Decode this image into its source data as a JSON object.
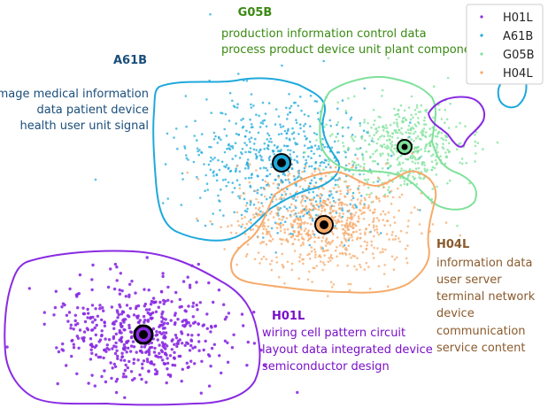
{
  "chart_data": {
    "type": "scatter",
    "legend": {
      "placement": "top-right",
      "entries": [
        "H01L",
        "A61B",
        "G05B",
        "H04L"
      ]
    },
    "series": [
      {
        "name": "A61B",
        "color": "#1fa9dc",
        "centroid": [
          318,
          184
        ],
        "terms": [
          "image medical information",
          "data patient device",
          "health user unit signal"
        ],
        "spread": [
          52,
          40
        ],
        "count": 620
      },
      {
        "name": "G05B",
        "color": "#7ee19a",
        "centroid": [
          457,
          166
        ],
        "terms": [
          "production information control data",
          "process product device unit plant component"
        ],
        "spread": [
          36,
          26
        ],
        "count": 480
      },
      {
        "name": "H04L",
        "color": "#f5aa6a",
        "centroid": [
          366,
          254
        ],
        "terms": [
          "information data",
          "user server",
          "terminal network",
          "device",
          "communication",
          "service content"
        ],
        "spread": [
          48,
          28
        ],
        "count": 720
      },
      {
        "name": "H01L",
        "color": "#8a2be2",
        "centroid": [
          162,
          378
        ],
        "terms": [
          "wiring cell pattern circuit",
          "layout data integrated device",
          "semiconductor design"
        ],
        "spread": [
          48,
          30
        ],
        "count": 520
      }
    ],
    "annotations": {
      "A61B": {
        "title": "A61B",
        "color": "#1a4d7a"
      },
      "G05B": {
        "title": "G05B",
        "color": "#3a8a12"
      },
      "H04L": {
        "title": "H04L",
        "color": "#8a5a2b"
      },
      "H01L": {
        "title": "H01L",
        "color": "#7a0fc8"
      }
    }
  }
}
